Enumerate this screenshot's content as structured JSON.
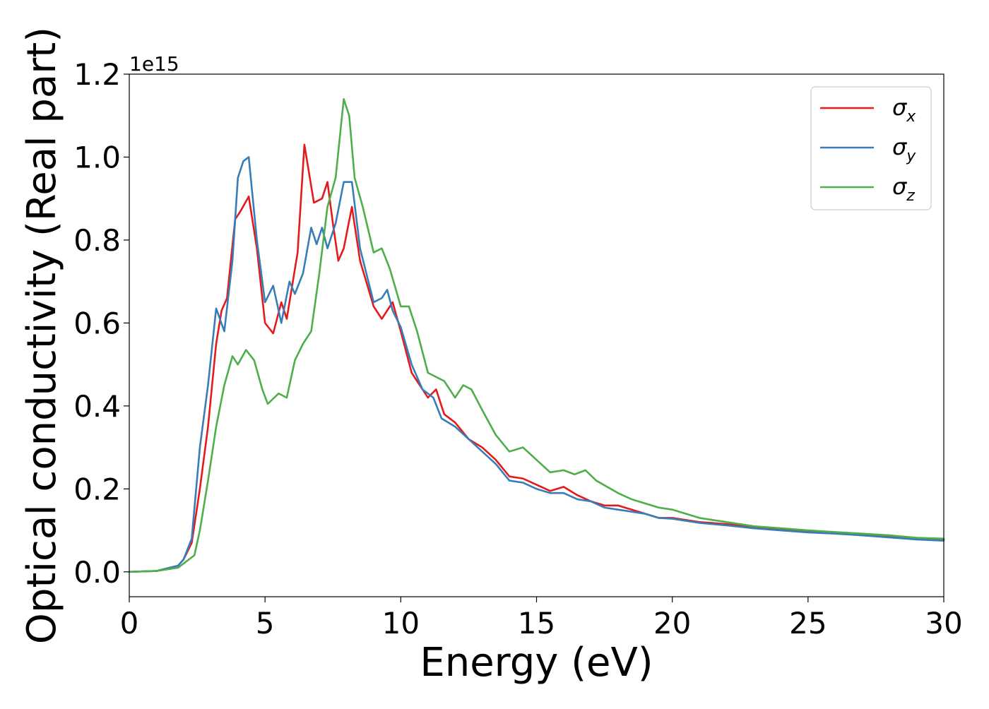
{
  "chart_data": {
    "type": "line",
    "title": "",
    "xlabel": "Energy (eV)",
    "ylabel": "Optical conductivity (Real part)",
    "offset_label": "1e15",
    "xlim": [
      0,
      30
    ],
    "ylim": [
      -0.06,
      1.2
    ],
    "y_scale": 1000000000000000.0,
    "xticks": [
      0,
      5,
      10,
      15,
      20,
      25,
      30
    ],
    "yticks": [
      0.0,
      0.2,
      0.4,
      0.6,
      0.8,
      1.0,
      1.2
    ],
    "ytick_labels": [
      "0.0",
      "0.2",
      "0.4",
      "0.6",
      "0.8",
      "1.0",
      "1.2"
    ],
    "grid": false,
    "legend_position": "top-right",
    "series": [
      {
        "name": "σ_x",
        "symbol": "σ",
        "subscript": "x",
        "color": "#e41a1c",
        "points": [
          [
            0.0,
            0.0
          ],
          [
            1.0,
            0.002
          ],
          [
            1.8,
            0.015
          ],
          [
            2.0,
            0.03
          ],
          [
            2.3,
            0.07
          ],
          [
            2.6,
            0.2
          ],
          [
            2.9,
            0.35
          ],
          [
            3.2,
            0.55
          ],
          [
            3.4,
            0.63
          ],
          [
            3.6,
            0.66
          ],
          [
            3.9,
            0.85
          ],
          [
            4.1,
            0.87
          ],
          [
            4.4,
            0.905
          ],
          [
            4.7,
            0.78
          ],
          [
            5.0,
            0.6
          ],
          [
            5.3,
            0.575
          ],
          [
            5.6,
            0.65
          ],
          [
            5.8,
            0.61
          ],
          [
            6.2,
            0.77
          ],
          [
            6.45,
            1.03
          ],
          [
            6.8,
            0.89
          ],
          [
            7.1,
            0.9
          ],
          [
            7.3,
            0.94
          ],
          [
            7.5,
            0.84
          ],
          [
            7.7,
            0.75
          ],
          [
            7.9,
            0.78
          ],
          [
            8.2,
            0.88
          ],
          [
            8.5,
            0.75
          ],
          [
            9.0,
            0.64
          ],
          [
            9.3,
            0.61
          ],
          [
            9.7,
            0.65
          ],
          [
            10.0,
            0.58
          ],
          [
            10.4,
            0.48
          ],
          [
            10.8,
            0.44
          ],
          [
            11.0,
            0.42
          ],
          [
            11.3,
            0.44
          ],
          [
            11.6,
            0.38
          ],
          [
            12.0,
            0.36
          ],
          [
            12.5,
            0.32
          ],
          [
            13.0,
            0.3
          ],
          [
            13.5,
            0.27
          ],
          [
            14.0,
            0.23
          ],
          [
            14.5,
            0.225
          ],
          [
            15.0,
            0.21
          ],
          [
            15.5,
            0.195
          ],
          [
            16.0,
            0.205
          ],
          [
            16.5,
            0.185
          ],
          [
            17.0,
            0.17
          ],
          [
            17.5,
            0.16
          ],
          [
            18.0,
            0.16
          ],
          [
            18.5,
            0.15
          ],
          [
            19.0,
            0.14
          ],
          [
            19.5,
            0.13
          ],
          [
            20.0,
            0.13
          ],
          [
            21.0,
            0.12
          ],
          [
            22.0,
            0.115
          ],
          [
            23.0,
            0.108
          ],
          [
            24.0,
            0.103
          ],
          [
            25.0,
            0.098
          ],
          [
            26.0,
            0.093
          ],
          [
            27.0,
            0.088
          ],
          [
            28.0,
            0.084
          ],
          [
            29.0,
            0.08
          ],
          [
            30.0,
            0.078
          ]
        ]
      },
      {
        "name": "σ_y",
        "symbol": "σ",
        "subscript": "y",
        "color": "#377eb8",
        "points": [
          [
            0.0,
            0.0
          ],
          [
            1.0,
            0.002
          ],
          [
            1.8,
            0.015
          ],
          [
            2.0,
            0.03
          ],
          [
            2.3,
            0.08
          ],
          [
            2.6,
            0.3
          ],
          [
            2.9,
            0.45
          ],
          [
            3.2,
            0.635
          ],
          [
            3.5,
            0.58
          ],
          [
            3.8,
            0.75
          ],
          [
            4.0,
            0.95
          ],
          [
            4.2,
            0.99
          ],
          [
            4.4,
            1.0
          ],
          [
            4.7,
            0.8
          ],
          [
            5.0,
            0.65
          ],
          [
            5.3,
            0.69
          ],
          [
            5.6,
            0.6
          ],
          [
            5.9,
            0.7
          ],
          [
            6.1,
            0.67
          ],
          [
            6.4,
            0.72
          ],
          [
            6.7,
            0.83
          ],
          [
            6.9,
            0.79
          ],
          [
            7.1,
            0.83
          ],
          [
            7.3,
            0.78
          ],
          [
            7.6,
            0.84
          ],
          [
            7.9,
            0.94
          ],
          [
            8.2,
            0.94
          ],
          [
            8.5,
            0.78
          ],
          [
            9.0,
            0.65
          ],
          [
            9.3,
            0.66
          ],
          [
            9.5,
            0.68
          ],
          [
            9.7,
            0.63
          ],
          [
            10.0,
            0.59
          ],
          [
            10.4,
            0.5
          ],
          [
            10.8,
            0.44
          ],
          [
            11.2,
            0.42
          ],
          [
            11.5,
            0.37
          ],
          [
            12.0,
            0.35
          ],
          [
            12.5,
            0.32
          ],
          [
            13.0,
            0.29
          ],
          [
            13.5,
            0.26
          ],
          [
            14.0,
            0.22
          ],
          [
            14.5,
            0.215
          ],
          [
            15.0,
            0.2
          ],
          [
            15.5,
            0.19
          ],
          [
            16.0,
            0.19
          ],
          [
            16.5,
            0.175
          ],
          [
            17.0,
            0.17
          ],
          [
            17.5,
            0.155
          ],
          [
            18.0,
            0.15
          ],
          [
            18.5,
            0.145
          ],
          [
            19.0,
            0.14
          ],
          [
            19.5,
            0.13
          ],
          [
            20.0,
            0.128
          ],
          [
            21.0,
            0.118
          ],
          [
            22.0,
            0.112
          ],
          [
            23.0,
            0.105
          ],
          [
            24.0,
            0.1
          ],
          [
            25.0,
            0.095
          ],
          [
            26.0,
            0.092
          ],
          [
            27.0,
            0.088
          ],
          [
            28.0,
            0.083
          ],
          [
            29.0,
            0.078
          ],
          [
            30.0,
            0.075
          ]
        ]
      },
      {
        "name": "σ_z",
        "symbol": "σ",
        "subscript": "z",
        "color": "#4daf4a",
        "points": [
          [
            0.0,
            0.0
          ],
          [
            1.0,
            0.002
          ],
          [
            1.8,
            0.01
          ],
          [
            2.0,
            0.02
          ],
          [
            2.4,
            0.04
          ],
          [
            2.6,
            0.1
          ],
          [
            2.9,
            0.22
          ],
          [
            3.2,
            0.35
          ],
          [
            3.5,
            0.45
          ],
          [
            3.8,
            0.52
          ],
          [
            4.0,
            0.5
          ],
          [
            4.3,
            0.535
          ],
          [
            4.6,
            0.51
          ],
          [
            4.9,
            0.44
          ],
          [
            5.1,
            0.405
          ],
          [
            5.5,
            0.43
          ],
          [
            5.8,
            0.42
          ],
          [
            6.1,
            0.51
          ],
          [
            6.4,
            0.55
          ],
          [
            6.7,
            0.58
          ],
          [
            7.0,
            0.72
          ],
          [
            7.3,
            0.88
          ],
          [
            7.6,
            0.95
          ],
          [
            7.9,
            1.14
          ],
          [
            8.1,
            1.1
          ],
          [
            8.3,
            0.95
          ],
          [
            8.6,
            0.88
          ],
          [
            9.0,
            0.77
          ],
          [
            9.3,
            0.78
          ],
          [
            9.6,
            0.73
          ],
          [
            10.0,
            0.64
          ],
          [
            10.3,
            0.64
          ],
          [
            10.6,
            0.58
          ],
          [
            11.0,
            0.48
          ],
          [
            11.3,
            0.47
          ],
          [
            11.6,
            0.46
          ],
          [
            12.0,
            0.42
          ],
          [
            12.3,
            0.45
          ],
          [
            12.6,
            0.44
          ],
          [
            13.0,
            0.39
          ],
          [
            13.5,
            0.33
          ],
          [
            14.0,
            0.29
          ],
          [
            14.5,
            0.3
          ],
          [
            15.0,
            0.27
          ],
          [
            15.5,
            0.24
          ],
          [
            16.0,
            0.245
          ],
          [
            16.4,
            0.235
          ],
          [
            16.8,
            0.245
          ],
          [
            17.2,
            0.22
          ],
          [
            17.6,
            0.205
          ],
          [
            18.0,
            0.19
          ],
          [
            18.5,
            0.175
          ],
          [
            19.0,
            0.165
          ],
          [
            19.5,
            0.155
          ],
          [
            20.0,
            0.15
          ],
          [
            21.0,
            0.13
          ],
          [
            22.0,
            0.12
          ],
          [
            23.0,
            0.11
          ],
          [
            24.0,
            0.105
          ],
          [
            25.0,
            0.1
          ],
          [
            26.0,
            0.096
          ],
          [
            27.0,
            0.092
          ],
          [
            28.0,
            0.088
          ],
          [
            29.0,
            0.082
          ],
          [
            30.0,
            0.08
          ]
        ]
      }
    ]
  }
}
